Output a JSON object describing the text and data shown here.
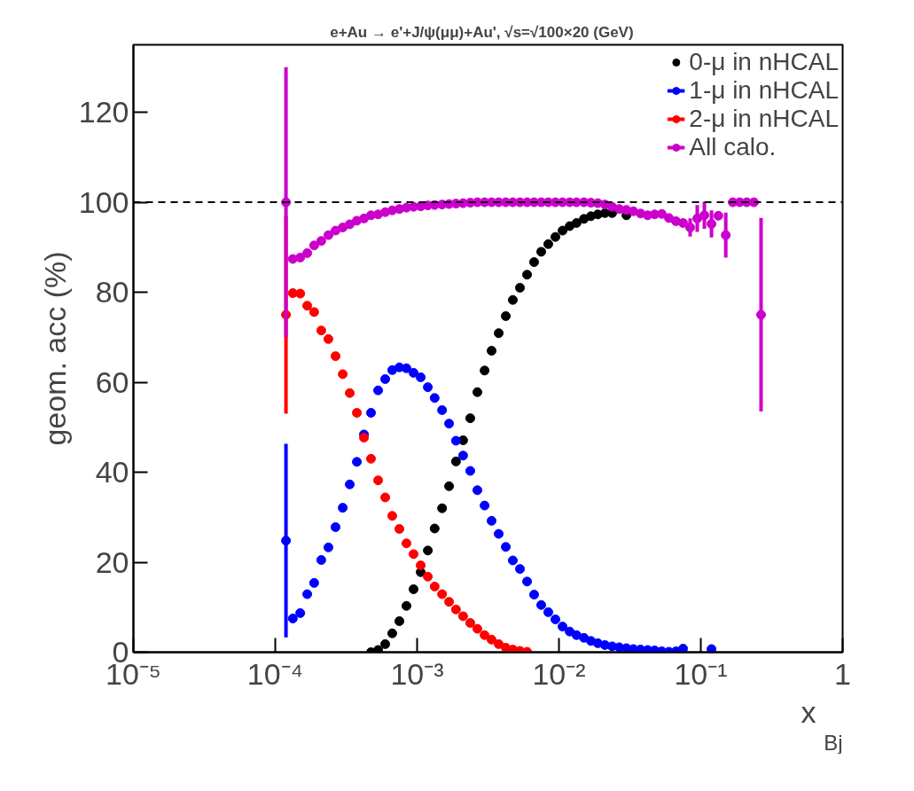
{
  "chart_data": {
    "type": "scatter",
    "title": "e+Au  → e'+J/ψ(μμ)+Au',   √s=√100×20 (GeV)",
    "xlabel": "x$_{Bj}$",
    "ylabel": "geom. acc (%)",
    "log": "x",
    "xlim": [
      1e-05,
      1
    ],
    "xticks": [
      {
        "value": 1e-05,
        "label": "10⁻⁵"
      },
      {
        "value": 0.0001,
        "label": "10⁻⁴"
      },
      {
        "value": 0.001,
        "label": "10⁻³"
      },
      {
        "value": 0.01,
        "label": "10⁻²"
      },
      {
        "value": 0.1,
        "label": "10⁻¹"
      },
      1
    ],
    "ylim": [
      0,
      135
    ],
    "yticks": [
      0,
      20,
      40,
      60,
      80,
      100,
      120
    ],
    "grid": false,
    "legend": "top right",
    "marker": "circle",
    "x": [
      0.000119,
      0.000133,
      0.00015,
      0.000168,
      0.000188,
      0.000211,
      0.000237,
      0.000266,
      0.000299,
      0.000335,
      0.000376,
      0.000422,
      0.000473,
      0.000531,
      0.000596,
      0.000668,
      0.00075,
      0.000841,
      0.000944,
      0.00106,
      0.00119,
      0.00133,
      0.0015,
      0.00168,
      0.00188,
      0.00211,
      0.00237,
      0.00266,
      0.00299,
      0.00335,
      0.00376,
      0.00422,
      0.00473,
      0.00531,
      0.00596,
      0.00668,
      0.0075,
      0.00841,
      0.00944,
      0.0106,
      0.0119,
      0.0133,
      0.015,
      0.0168,
      0.0188,
      0.0211,
      0.0237,
      0.0266,
      0.0299,
      0.0335,
      0.0376,
      0.0422,
      0.0473,
      0.0531,
      0.0596,
      0.0668,
      0.075,
      0.0841,
      0.0944,
      0.106,
      0.119,
      0.133,
      0.15,
      0.168,
      0.188,
      0.211,
      0.237,
      0.266
    ],
    "series": [
      {
        "name": "0-μ in nHCAL",
        "color": "#000000",
        "values": [
          null,
          null,
          null,
          null,
          null,
          null,
          null,
          null,
          null,
          null,
          null,
          null,
          0,
          0.5,
          1.8,
          4.2,
          6.9,
          10.3,
          14.0,
          17.8,
          22.6,
          27.5,
          32.0,
          36.9,
          42.4,
          47.1,
          52.0,
          57.8,
          62.6,
          67.0,
          70.9,
          74.7,
          78.3,
          81.0,
          83.9,
          86.7,
          89.0,
          90.7,
          92.3,
          93.7,
          94.7,
          95.4,
          96.3,
          96.9,
          97.3,
          97.6,
          97.6,
          null,
          97.1,
          null,
          null,
          null,
          null,
          null,
          null,
          null,
          null,
          null,
          null,
          null,
          null,
          null,
          null,
          null,
          null,
          null,
          null,
          null
        ]
      },
      {
        "name": "1-μ in nHCAL",
        "color": "#0000ff",
        "values": [
          24.8,
          7.5,
          8.7,
          12.9,
          15.4,
          20.5,
          23.3,
          27.8,
          32.1,
          37.3,
          42.3,
          48.4,
          53.2,
          58.2,
          60.7,
          62.7,
          63.3,
          63.1,
          62.1,
          61.1,
          58.9,
          56.5,
          53.8,
          50.8,
          47.0,
          43.7,
          40.3,
          36.0,
          32.6,
          29.2,
          26.3,
          23.4,
          20.4,
          18.5,
          15.7,
          12.8,
          10.5,
          8.9,
          7.3,
          5.7,
          4.6,
          3.8,
          3.2,
          2.5,
          2.0,
          1.6,
          1.3,
          1.1,
          0.9,
          0.7,
          0.6,
          0.5,
          0.4,
          0.2,
          0.1,
          0.2,
          0.8,
          null,
          null,
          null,
          0.7,
          null,
          null,
          null,
          null,
          null,
          null,
          null
        ],
        "errors": [
          21.5,
          null,
          null,
          null,
          null,
          null,
          null,
          null,
          null,
          null,
          null,
          null,
          null,
          null,
          null,
          null,
          null,
          null,
          null,
          null,
          null,
          null,
          null,
          null,
          null,
          null,
          null,
          null,
          null,
          null,
          null,
          null,
          null,
          null,
          null,
          null,
          null,
          null,
          null,
          null,
          null,
          null,
          null,
          null,
          null,
          null,
          null,
          null,
          null,
          null,
          null,
          null,
          null,
          null,
          null,
          null,
          null,
          null,
          null,
          null,
          null,
          null,
          null,
          null,
          null,
          null,
          null,
          null
        ]
      },
      {
        "name": "2-μ in nHCAL",
        "color": "#ff0000",
        "values": [
          75.0,
          79.8,
          79.7,
          77.0,
          75.6,
          71.5,
          69.6,
          65.8,
          61.8,
          57.6,
          53.2,
          47.7,
          43.0,
          38.2,
          34.4,
          30.3,
          27.4,
          24.2,
          21.8,
          19.3,
          16.8,
          14.6,
          12.9,
          11.2,
          9.5,
          8.0,
          6.5,
          5.2,
          3.8,
          2.8,
          1.8,
          1.0,
          0.6,
          0.3,
          0.1,
          null,
          null,
          null,
          null,
          null,
          null,
          null,
          null,
          null,
          null,
          null,
          null,
          null,
          null,
          null,
          null,
          null,
          null,
          null,
          null,
          null,
          null,
          null,
          null,
          null,
          null,
          null,
          null,
          null,
          null,
          null,
          null,
          null
        ],
        "errors": [
          22,
          null,
          null,
          null,
          null,
          null,
          null,
          null,
          null,
          null,
          null,
          null,
          null,
          null,
          null,
          null,
          null,
          null,
          null,
          null,
          null,
          null,
          null,
          null,
          null,
          null,
          null,
          null,
          null,
          null,
          null,
          null,
          null,
          null,
          null,
          null,
          null,
          null,
          null,
          null,
          null,
          null,
          null,
          null,
          null,
          null,
          null,
          null,
          null,
          null,
          null,
          null,
          null,
          null,
          null,
          null,
          null,
          null,
          null,
          null,
          null,
          null,
          null,
          null,
          null,
          null,
          null,
          null
        ]
      },
      {
        "name": "All calo.",
        "color": "#cc00cc",
        "values": [
          100,
          87.4,
          87.7,
          88.7,
          90.4,
          91.4,
          92.7,
          93.7,
          94.4,
          95.1,
          95.9,
          96.4,
          97.1,
          97.3,
          97.8,
          98.2,
          98.5,
          98.8,
          99.0,
          99.1,
          99.3,
          99.4,
          99.5,
          99.6,
          99.7,
          99.8,
          99.9,
          100,
          100,
          100,
          100,
          100,
          100,
          100,
          100,
          100,
          100,
          100,
          100,
          100,
          100,
          100,
          100,
          99.9,
          99.8,
          99.5,
          99.0,
          98.5,
          98.3,
          98.0,
          97.5,
          97.1,
          97.3,
          97.4,
          96.5,
          95.8,
          95.4,
          94.4,
          96.4,
          97.1,
          95.2,
          97.0,
          92.7,
          100,
          100,
          100,
          100,
          75.0
        ],
        "errors": [
          30,
          null,
          null,
          null,
          null,
          null,
          null,
          null,
          null,
          null,
          null,
          null,
          null,
          null,
          null,
          null,
          null,
          null,
          null,
          null,
          null,
          null,
          null,
          null,
          null,
          null,
          null,
          null,
          null,
          null,
          null,
          null,
          null,
          null,
          null,
          null,
          null,
          null,
          null,
          null,
          null,
          null,
          null,
          null,
          null,
          null,
          null,
          null,
          null,
          null,
          null,
          null,
          null,
          null,
          null,
          null,
          null,
          2,
          3,
          3,
          3,
          null,
          5,
          null,
          null,
          null,
          null,
          21.5
        ]
      }
    ],
    "ref_lines": [
      {
        "axis": "y",
        "value": 100,
        "line_style": "dashed",
        "color": "#000000"
      }
    ]
  }
}
